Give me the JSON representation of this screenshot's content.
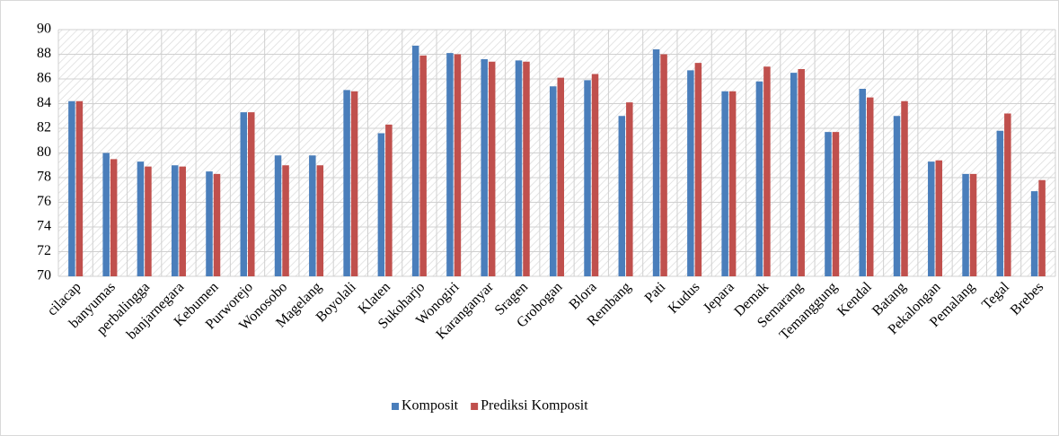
{
  "chart_data": {
    "type": "bar",
    "categories": [
      "cilacap",
      "banyumas",
      "perbalingga",
      "banjarnegara",
      "Kebumen",
      "Purworejo",
      "Wonosobo",
      "Magelang",
      "Boyolali",
      "Klaten",
      "Sukoharjo",
      "Wonogiri",
      "Karanganyar",
      "Sragen",
      "Grobogan",
      "Blora",
      "Rembang",
      "Pati",
      "Kudus",
      "Jepara",
      "Demak",
      "Semarang",
      "Temanggung",
      "Kendal",
      "Batang",
      "Pekalongan",
      "Pemalang",
      "Tegal",
      "Brebes"
    ],
    "series": [
      {
        "name": "Komposit",
        "color": "#4a7ebb",
        "values": [
          84.2,
          80.0,
          79.3,
          79.0,
          78.5,
          83.3,
          79.8,
          79.8,
          85.1,
          81.6,
          88.7,
          88.1,
          87.6,
          87.5,
          85.4,
          85.9,
          83.0,
          88.4,
          86.7,
          85.0,
          85.8,
          86.5,
          81.7,
          85.2,
          83.0,
          79.3,
          78.3,
          81.8,
          76.9
        ]
      },
      {
        "name": "Prediksi Komposit",
        "color": "#c0504d",
        "values": [
          84.2,
          79.5,
          78.9,
          78.9,
          78.3,
          83.3,
          79.0,
          79.0,
          85.0,
          82.3,
          87.9,
          88.0,
          87.4,
          87.4,
          86.1,
          86.4,
          84.1,
          88.0,
          87.3,
          85.0,
          87.0,
          86.8,
          81.7,
          84.5,
          84.2,
          79.4,
          78.3,
          83.2,
          77.8
        ]
      }
    ],
    "ylim": [
      70,
      90
    ],
    "yticks": [
      70,
      72,
      74,
      76,
      78,
      80,
      82,
      84,
      86,
      88,
      90
    ],
    "grid": true,
    "legend": "bottom"
  }
}
